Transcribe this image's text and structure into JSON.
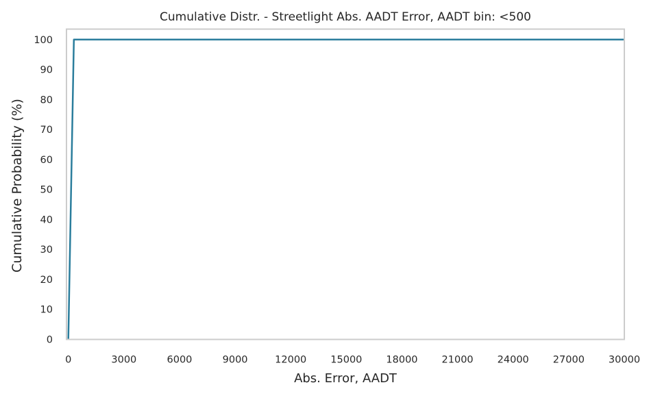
{
  "chart_data": {
    "type": "line",
    "title": "Cumulative Distr. - Streetlight Abs. AADT Error, AADT bin: <500",
    "xlabel": "Abs. Error, AADT",
    "ylabel": "Cumulative Probability (%)",
    "xlim": [
      -100,
      30000
    ],
    "ylim": [
      0,
      103.5
    ],
    "x_ticks": [
      "0",
      "3000",
      "6000",
      "9000",
      "12000",
      "15000",
      "18000",
      "21000",
      "24000",
      "27000",
      "30000"
    ],
    "y_ticks": [
      "0",
      "10",
      "20",
      "30",
      "40",
      "50",
      "60",
      "70",
      "80",
      "90",
      "100"
    ],
    "grid": false,
    "series": [
      {
        "color": "#2a7d9c",
        "x": [
          0,
          300,
          30000
        ],
        "y": [
          0,
          100,
          100
        ]
      }
    ]
  }
}
